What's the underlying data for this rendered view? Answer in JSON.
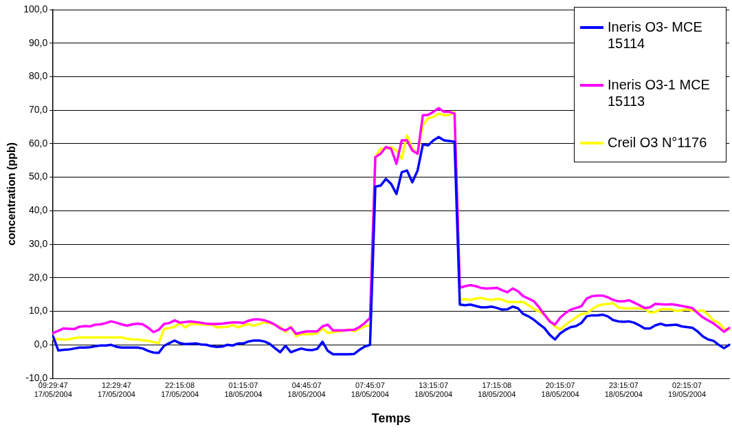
{
  "chart_data": {
    "type": "line",
    "xlabel": "Temps",
    "ylabel": "concentration (ppb)",
    "legend": "top right",
    "grid": "y",
    "marker": "none",
    "line_style": "solid",
    "ylim": [
      -10,
      100
    ],
    "yticks": [
      {
        "value": -10,
        "label": "-10,0"
      },
      {
        "value": 0,
        "label": "0,0"
      },
      {
        "value": 10,
        "label": "10,0"
      },
      {
        "value": 20,
        "label": "20,0"
      },
      {
        "value": 30,
        "label": "30,0"
      },
      {
        "value": 40,
        "label": "40,0"
      },
      {
        "value": 50,
        "label": "50,0"
      },
      {
        "value": 60,
        "label": "60,0"
      },
      {
        "value": 70,
        "label": "70,0"
      },
      {
        "value": 80,
        "label": "80,0"
      },
      {
        "value": 90,
        "label": "90,0"
      },
      {
        "value": 100,
        "label": "100,0"
      }
    ],
    "categories": [
      "09:29:47\n17/05/2004",
      null,
      null,
      null,
      null,
      null,
      null,
      null,
      null,
      null,
      null,
      null,
      "12:29:47\n17/05/2004",
      null,
      null,
      null,
      null,
      null,
      null,
      null,
      null,
      null,
      null,
      null,
      "22:15:08\n17/05/2004",
      null,
      null,
      null,
      null,
      null,
      null,
      null,
      null,
      null,
      null,
      null,
      "01:15:07\n18/05/2004",
      null,
      null,
      null,
      null,
      null,
      null,
      null,
      null,
      null,
      null,
      null,
      "04:45:07\n18/05/2004",
      null,
      null,
      null,
      null,
      null,
      null,
      null,
      null,
      null,
      null,
      null,
      "07:45:07\n18/05/2004",
      null,
      null,
      null,
      null,
      null,
      null,
      null,
      null,
      null,
      null,
      null,
      "13:15:07\n18/05/2004",
      null,
      null,
      null,
      null,
      null,
      null,
      null,
      null,
      null,
      null,
      null,
      "17:15:08\n18/05/2004",
      null,
      null,
      null,
      null,
      null,
      null,
      null,
      null,
      null,
      null,
      null,
      "20:15:07\n18/05/2004",
      null,
      null,
      null,
      null,
      null,
      null,
      null,
      null,
      null,
      null,
      null,
      "23:15:07\n18/05/2004",
      null,
      null,
      null,
      null,
      null,
      null,
      null,
      null,
      null,
      null,
      null,
      "02:15:07\n19/05/2004",
      null,
      null,
      null,
      null,
      null,
      null,
      null,
      null
    ],
    "series": [
      {
        "name": "Ineris O3- MCE 15114",
        "color": "#0000ff",
        "values": [
          2.5,
          -1.7,
          -1.5,
          -1.4,
          -1.1,
          -0.8,
          -0.8,
          -0.7,
          -0.4,
          -0.2,
          -0.2,
          0.0,
          -0.6,
          -0.8,
          -0.8,
          -0.8,
          -0.8,
          -1.1,
          -1.8,
          -2.3,
          -2.4,
          -0.3,
          0.5,
          1.3,
          0.5,
          0.2,
          0.3,
          0.4,
          0.1,
          0.0,
          -0.4,
          -0.6,
          -0.5,
          0.0,
          -0.2,
          0.4,
          0.4,
          1.0,
          1.3,
          1.3,
          1.0,
          0.3,
          -1.0,
          -2.2,
          -0.3,
          -2.2,
          -1.6,
          -1.1,
          -1.5,
          -1.6,
          -1.2,
          0.9,
          -1.8,
          -2.8,
          -2.8,
          -2.8,
          -2.8,
          -2.7,
          -1.5,
          -0.5,
          0.0,
          47.2,
          47.5,
          49.5,
          48,
          45,
          51.5,
          52,
          48.5,
          52,
          59.8,
          59.5,
          61,
          62,
          61,
          60.8,
          60.6,
          12,
          11.8,
          12.0,
          11.6,
          11.2,
          11.2,
          11.4,
          11.0,
          10.5,
          10.6,
          11.4,
          10.9,
          9.2,
          8.5,
          7.5,
          6.2,
          5.0,
          3.0,
          1.6,
          3.4,
          4.5,
          5.3,
          5.6,
          6.5,
          8.5,
          8.8,
          8.8,
          9.0,
          8.5,
          7.4,
          7.0,
          6.9,
          7.0,
          6.6,
          5.8,
          4.9,
          4.9,
          5.8,
          6.3,
          5.8,
          5.9,
          6.0,
          5.5,
          5.3,
          5.1,
          4.0,
          2.5,
          1.6,
          1.2,
          0.0,
          -1.0,
          0.0
        ]
      },
      {
        "name": "Ineris O3-1 MCE 15113",
        "color": "#ff00ff",
        "values": [
          3.5,
          4.2,
          4.9,
          4.8,
          4.7,
          5.4,
          5.6,
          5.5,
          6.0,
          6.1,
          6.5,
          7.0,
          6.6,
          6.1,
          5.7,
          6.1,
          6.3,
          6.1,
          5.1,
          3.8,
          4.5,
          6.2,
          6.5,
          7.3,
          6.6,
          6.8,
          7.0,
          6.8,
          6.6,
          6.3,
          6.2,
          6.2,
          6.3,
          6.5,
          6.7,
          6.7,
          6.5,
          7.2,
          7.6,
          7.6,
          7.3,
          6.8,
          6.0,
          4.9,
          4.3,
          5.2,
          3.3,
          3.7,
          4.0,
          4.0,
          4.0,
          5.5,
          6.0,
          4.3,
          4.3,
          4.3,
          4.4,
          4.5,
          5.3,
          6.5,
          8.0,
          56,
          57,
          59,
          58.5,
          54,
          61,
          61,
          58,
          57,
          68.5,
          68.6,
          69.5,
          70.6,
          69.5,
          69.5,
          69,
          17,
          17.5,
          17.8,
          17.5,
          17.0,
          16.8,
          16.9,
          17.0,
          16.3,
          15.7,
          16.8,
          16.0,
          14.5,
          13.8,
          13.0,
          11.2,
          9.0,
          7.0,
          6.0,
          8.1,
          9.5,
          10.5,
          11.0,
          11.5,
          13.8,
          14.5,
          14.7,
          14.7,
          14.2,
          13.4,
          13.0,
          13.0,
          13.3,
          12.6,
          11.8,
          11.0,
          11.2,
          12.2,
          12.1,
          12.0,
          12.1,
          11.9,
          11.6,
          11.3,
          11.0,
          9.5,
          8.2,
          7.3,
          6.4,
          5.2,
          3.9,
          5.0
        ]
      },
      {
        "name": "Creil O3 N°1176",
        "color": "#ffff00",
        "values": [
          1.8,
          1.7,
          1.6,
          1.6,
          2.0,
          2.2,
          2.2,
          2.2,
          2.2,
          2.2,
          2.2,
          2.2,
          2.2,
          2.2,
          1.8,
          1.6,
          1.6,
          1.4,
          1.2,
          0.8,
          0.5,
          4.7,
          5.0,
          5.4,
          6.5,
          5.2,
          6.2,
          6.2,
          6.1,
          6.0,
          6.0,
          5.2,
          5.3,
          5.4,
          5.9,
          5.2,
          5.8,
          6.2,
          5.7,
          6.2,
          6.7,
          6.5,
          6.0,
          5.3,
          3.8,
          5.4,
          2.6,
          3.2,
          3.2,
          3.2,
          3.5,
          4.9,
          3.5,
          3.8,
          4.0,
          4.2,
          4.6,
          4.0,
          4.8,
          5.5,
          5.9,
          56,
          58.5,
          58.5,
          59,
          58,
          55.5,
          62.5,
          58.5,
          57,
          65.5,
          67.6,
          68,
          69,
          68.5,
          68.6,
          69.5,
          13.5,
          13.6,
          13.4,
          13.8,
          14.0,
          13.6,
          13.4,
          13.7,
          13.5,
          12.8,
          12.8,
          12.8,
          12.8,
          11.8,
          10.7,
          10.0,
          9.0,
          7.3,
          5.5,
          4.6,
          6.0,
          7.1,
          8.2,
          9.2,
          9.4,
          10.6,
          11.6,
          12.0,
          12.2,
          12.4,
          11.2,
          10.9,
          10.9,
          10.9,
          10.9,
          10.8,
          9.6,
          9.8,
          10.6,
          10.6,
          10.6,
          10.1,
          10.3,
          10.6,
          10.2,
          10.0,
          10.3,
          9.0,
          7.3,
          6.6,
          4.8,
          4.6
        ]
      }
    ]
  }
}
